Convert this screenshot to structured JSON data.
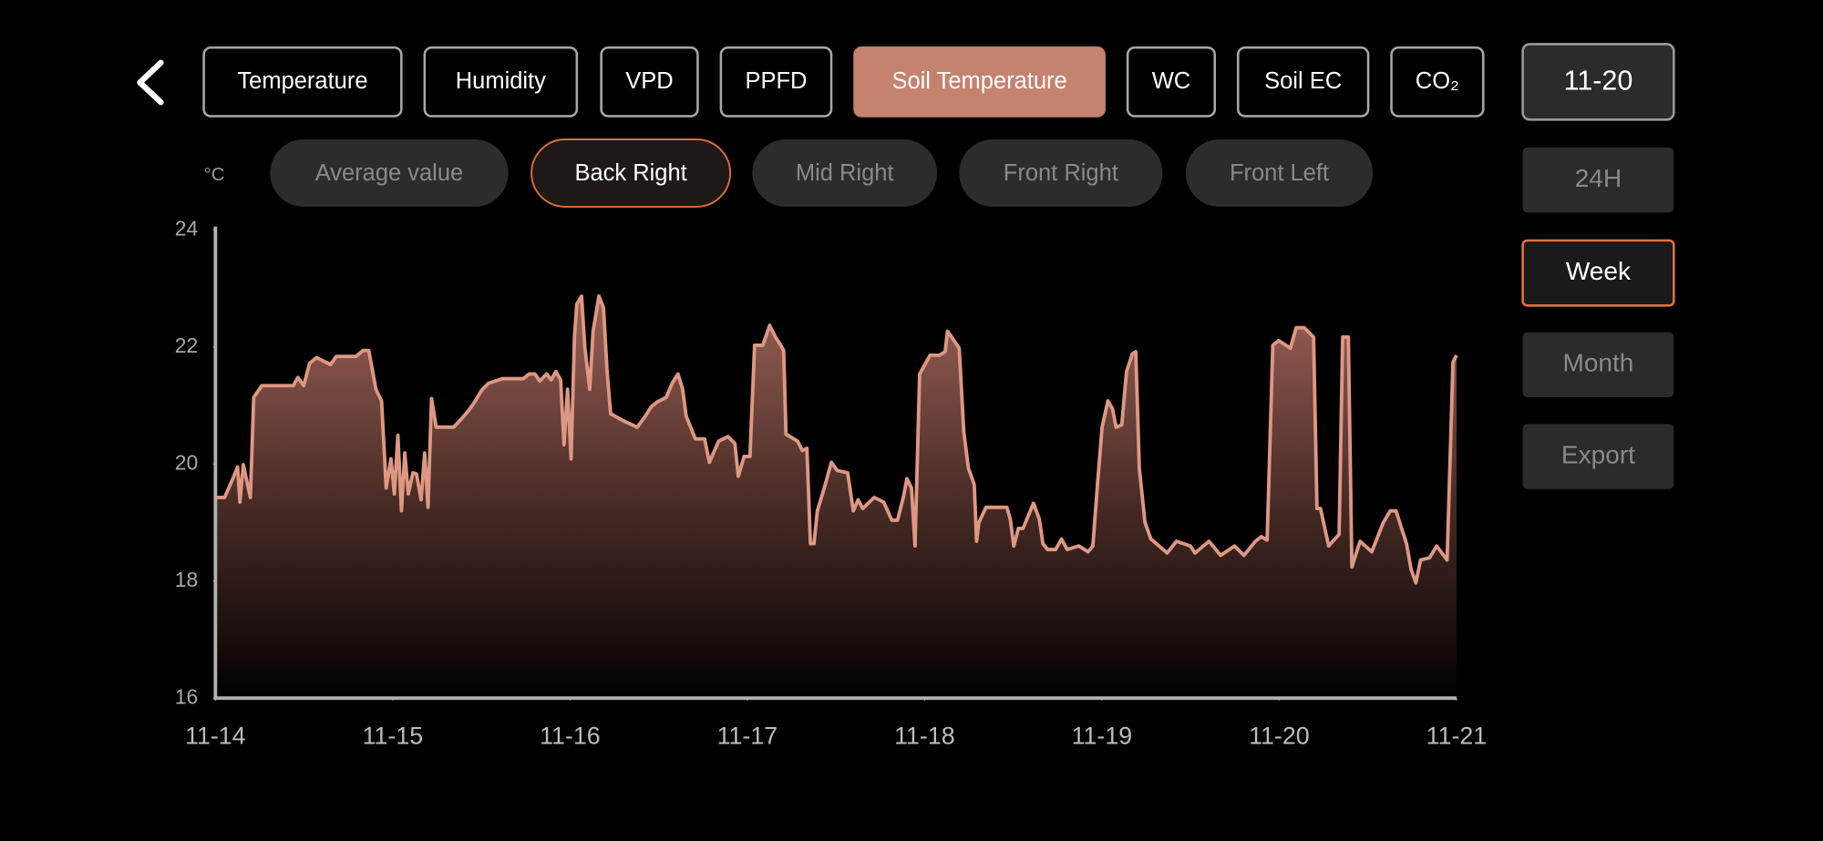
{
  "metric_tabs": {
    "items": [
      "Temperature",
      "Humidity",
      "VPD",
      "PPFD",
      "Soil Temperature",
      "WC",
      "Soil EC",
      "CO₂"
    ],
    "active": 4
  },
  "date": "11-20",
  "sensor_tabs": {
    "items": [
      "Average value",
      "Back Right",
      "Mid Right",
      "Front Right",
      "Front Left"
    ],
    "active": 1
  },
  "range_buttons": {
    "items": [
      "24H",
      "Week",
      "Month"
    ],
    "active": 1
  },
  "export": "Export",
  "chart_data": {
    "type": "area",
    "unit_label": "°C",
    "color": "#dd9883",
    "xlim": [
      0,
      7
    ],
    "xticks": [
      {
        "value": 0,
        "label": "11-14"
      },
      {
        "value": 1,
        "label": "11-15"
      },
      {
        "value": 2,
        "label": "11-16"
      },
      {
        "value": 3,
        "label": "11-17"
      },
      {
        "value": 4,
        "label": "11-18"
      },
      {
        "value": 5,
        "label": "11-19"
      },
      {
        "value": 6,
        "label": "11-20"
      },
      {
        "value": 7,
        "label": "11-21"
      }
    ],
    "ylim": [
      16,
      24
    ],
    "yticks": [
      16,
      18,
      20,
      22,
      24
    ],
    "x": [
      0,
      0.052,
      0.098,
      0.125,
      0.138,
      0.157,
      0.197,
      0.216,
      0.262,
      0.439,
      0.465,
      0.498,
      0.531,
      0.57,
      0.649,
      0.682,
      0.793,
      0.832,
      0.865,
      0.905,
      0.937,
      0.963,
      0.99,
      1.009,
      1.029,
      1.049,
      1.068,
      1.088,
      1.114,
      1.134,
      1.16,
      1.18,
      1.199,
      1.219,
      1.245,
      1.344,
      1.39,
      1.429,
      1.462,
      1.501,
      1.54,
      1.619,
      1.737,
      1.77,
      1.802,
      1.829,
      1.868,
      1.894,
      1.92,
      1.947,
      1.966,
      1.986,
      2.006,
      2.025,
      2.038,
      2.065,
      2.084,
      2.111,
      2.13,
      2.163,
      2.189,
      2.209,
      2.229,
      2.301,
      2.379,
      2.425,
      2.458,
      2.491,
      2.543,
      2.576,
      2.609,
      2.635,
      2.655,
      2.707,
      2.759,
      2.786,
      2.838,
      2.891,
      2.93,
      2.949,
      2.982,
      3.015,
      3.041,
      3.087,
      3.126,
      3.159,
      3.185,
      3.205,
      3.218,
      3.284,
      3.31,
      3.336,
      3.356,
      3.376,
      3.395,
      3.434,
      3.474,
      3.507,
      3.566,
      3.598,
      3.625,
      3.651,
      3.716,
      3.769,
      3.815,
      3.847,
      3.88,
      3.9,
      3.926,
      3.946,
      3.972,
      4.005,
      4.031,
      4.083,
      4.116,
      4.129,
      4.162,
      4.195,
      4.221,
      4.247,
      4.28,
      4.293,
      4.306,
      4.346,
      4.411,
      4.464,
      4.483,
      4.503,
      4.529,
      4.555,
      4.614,
      4.647,
      4.667,
      4.693,
      4.739,
      4.772,
      4.804,
      4.87,
      4.922,
      4.949,
      4.975,
      5.001,
      5.034,
      5.06,
      5.08,
      5.112,
      5.139,
      5.171,
      5.191,
      5.211,
      5.243,
      5.276,
      5.368,
      5.42,
      5.499,
      5.525,
      5.604,
      5.67,
      5.748,
      5.801,
      5.866,
      5.899,
      5.932,
      5.964,
      5.997,
      6.063,
      6.096,
      6.141,
      6.194,
      6.213,
      6.233,
      6.279,
      6.338,
      6.358,
      6.39,
      6.41,
      6.456,
      6.522,
      6.587,
      6.626,
      6.659,
      6.718,
      6.744,
      6.771,
      6.797,
      6.849,
      6.888,
      6.947,
      6.967,
      6.98,
      7
    ],
    "values": [
      19.43,
      19.43,
      19.75,
      19.95,
      19.35,
      19.99,
      19.43,
      21.14,
      21.34,
      21.34,
      21.48,
      21.34,
      21.72,
      21.82,
      21.7,
      21.84,
      21.84,
      21.94,
      21.94,
      21.28,
      21.08,
      19.59,
      20.09,
      19.49,
      20.49,
      19.2,
      20.19,
      19.49,
      19.85,
      19.83,
      19.39,
      20.19,
      19.26,
      21.12,
      20.63,
      20.63,
      20.78,
      20.92,
      21.06,
      21.26,
      21.38,
      21.46,
      21.46,
      21.54,
      21.54,
      21.42,
      21.54,
      21.44,
      21.58,
      21.44,
      20.33,
      21.28,
      20.09,
      22.17,
      22.73,
      22.87,
      21.98,
      21.28,
      22.27,
      22.87,
      22.67,
      21.58,
      20.86,
      20.74,
      20.63,
      20.82,
      20.98,
      21.06,
      21.14,
      21.38,
      21.54,
      21.28,
      20.82,
      20.43,
      20.43,
      20.03,
      20.39,
      20.47,
      20.35,
      19.79,
      20.13,
      20.13,
      22.03,
      22.03,
      22.37,
      22.17,
      22.05,
      21.94,
      20.51,
      20.39,
      20.23,
      20.27,
      18.64,
      18.64,
      19.2,
      19.59,
      20.03,
      19.89,
      19.85,
      19.2,
      19.39,
      19.24,
      19.43,
      19.35,
      19.04,
      19.04,
      19.43,
      19.75,
      19.59,
      18.6,
      21.54,
      21.72,
      21.86,
      21.86,
      21.92,
      22.27,
      22.13,
      21.98,
      20.55,
      19.93,
      19.65,
      18.68,
      19.0,
      19.26,
      19.26,
      19.26,
      19.06,
      18.6,
      18.9,
      18.9,
      19.33,
      19.06,
      18.64,
      18.54,
      18.54,
      18.72,
      18.54,
      18.6,
      18.5,
      18.6,
      19.65,
      20.63,
      21.08,
      20.94,
      20.63,
      20.67,
      21.58,
      21.88,
      21.92,
      19.93,
      19.0,
      18.72,
      18.48,
      18.68,
      18.6,
      18.48,
      18.68,
      18.44,
      18.6,
      18.44,
      18.68,
      18.76,
      18.7,
      22.03,
      22.11,
      21.98,
      22.33,
      22.33,
      22.17,
      19.24,
      19.24,
      18.6,
      18.8,
      22.17,
      22.17,
      18.24,
      18.68,
      18.5,
      19.0,
      19.2,
      19.2,
      18.64,
      18.2,
      17.97,
      18.36,
      18.4,
      18.6,
      18.36,
      20.39,
      21.74,
      21.86
    ]
  }
}
